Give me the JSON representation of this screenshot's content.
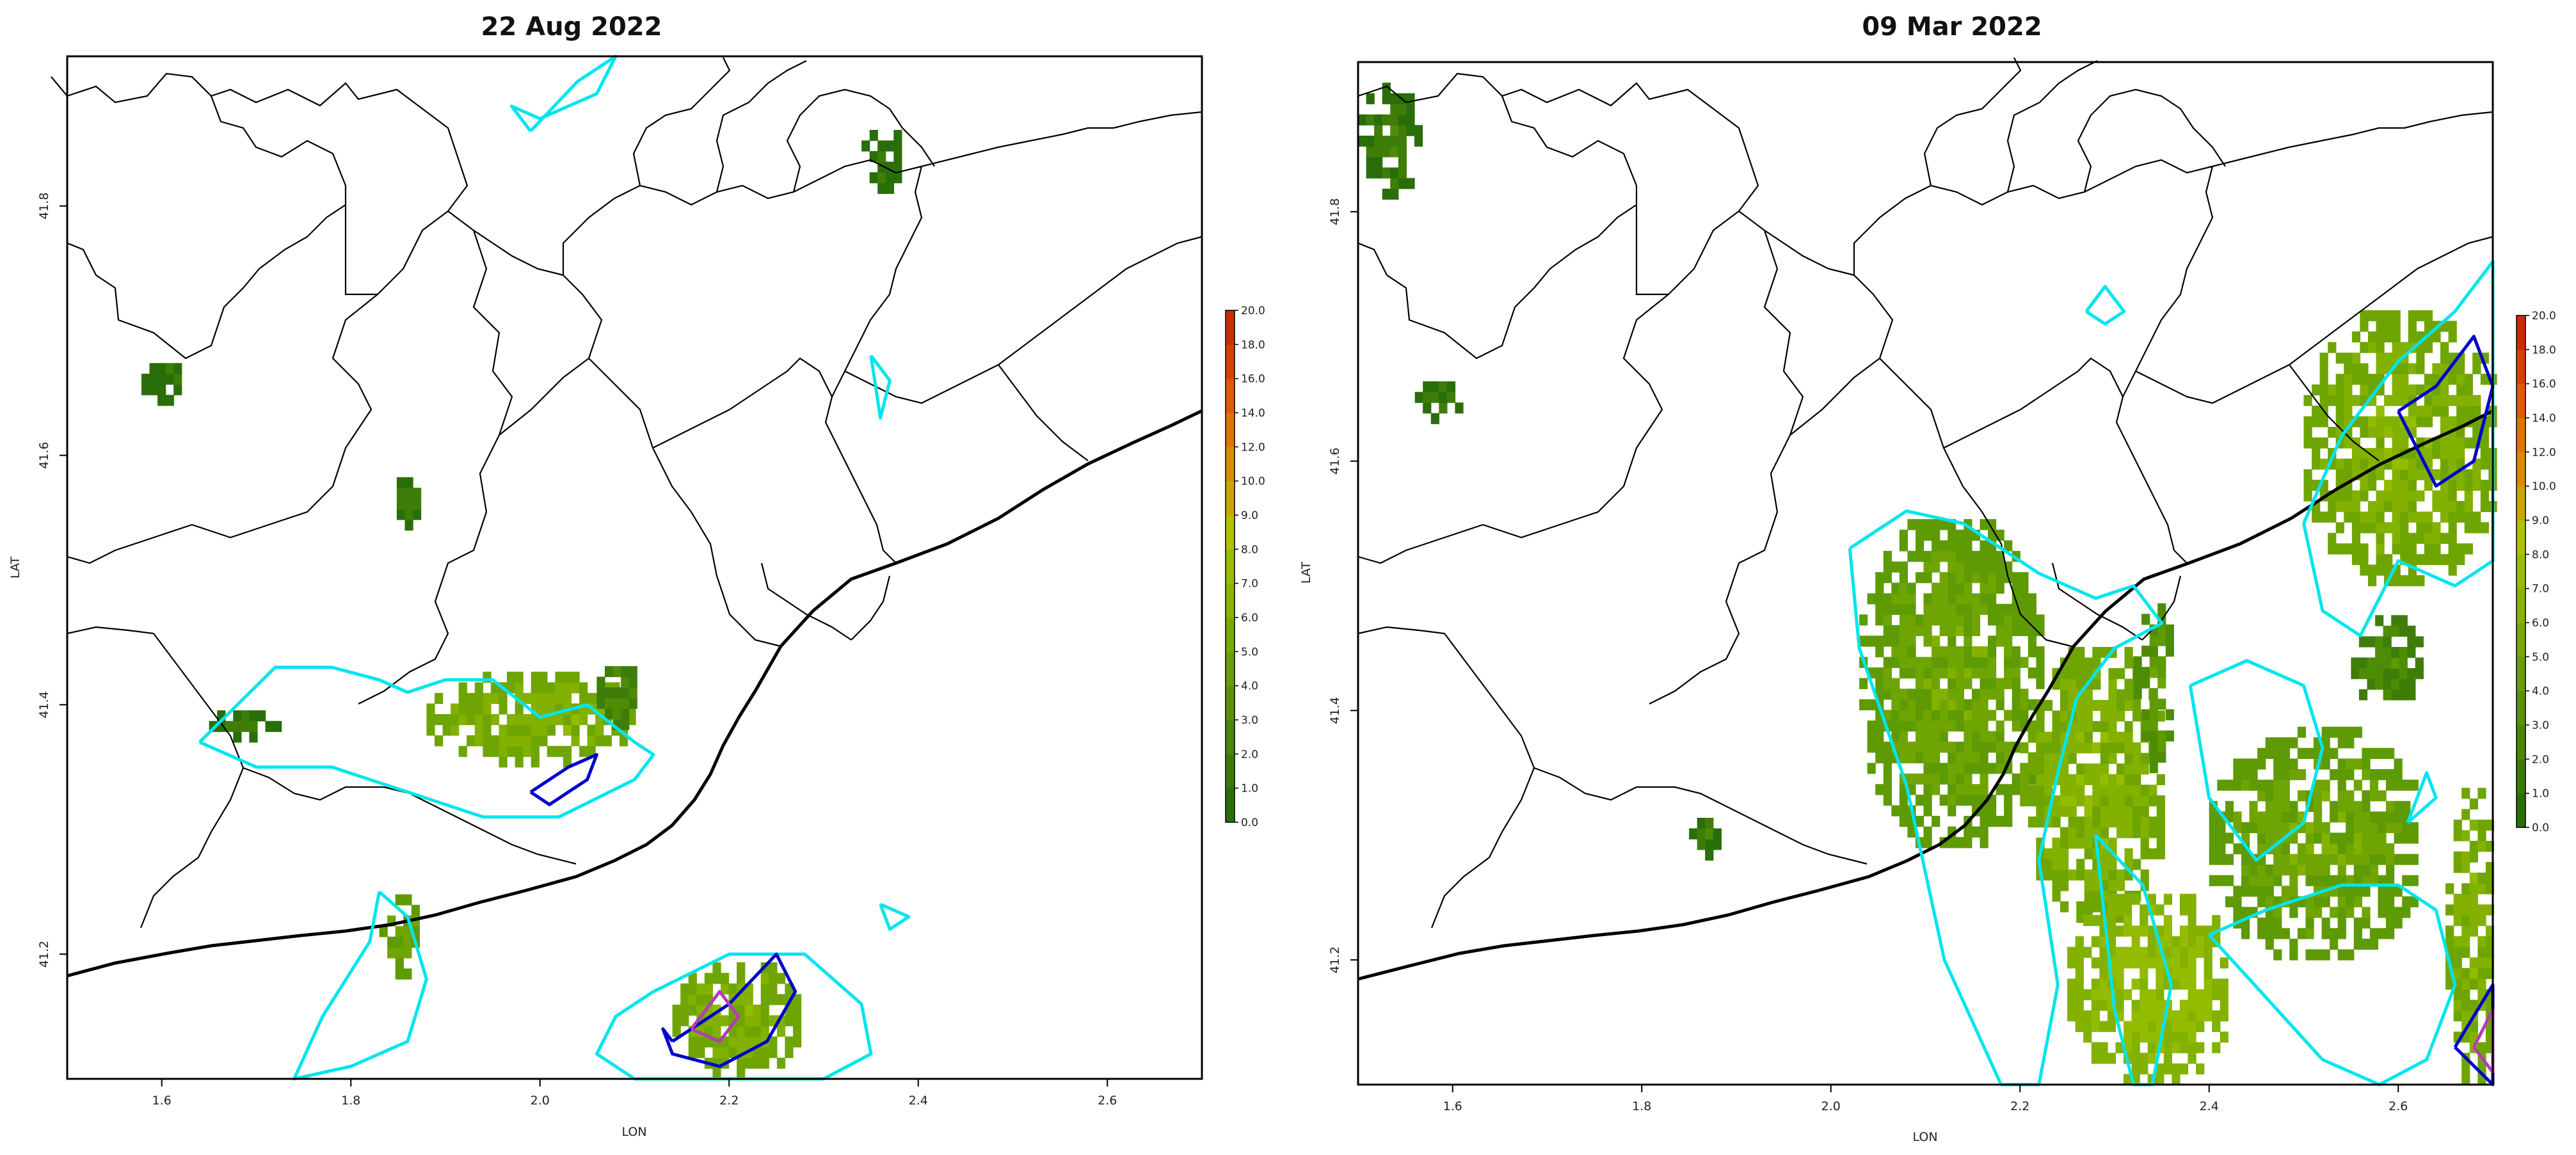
{
  "chart_data": [
    {
      "type": "map",
      "title": "22 Aug 2022",
      "xlabel": "LON",
      "ylabel": "LAT",
      "xlim": [
        1.5,
        2.7
      ],
      "ylim": [
        41.1,
        41.92
      ],
      "xticks": [
        "1.6",
        "1.8",
        "2.0",
        "2.2",
        "2.4",
        "2.6"
      ],
      "xtick_values": [
        1.6,
        1.8,
        2.0,
        2.2,
        2.4,
        2.6
      ],
      "yticks": [
        "41.2",
        "41.4",
        "41.6",
        "41.8"
      ],
      "ytick_values": [
        41.2,
        41.4,
        41.6,
        41.8
      ],
      "colorbar": {
        "labels": [
          "0.0",
          "1.0",
          "2.0",
          "3.0",
          "4.0",
          "5.0",
          "6.0",
          "7.0",
          "8.0",
          "9.0",
          "10.0",
          "12.0",
          "14.0",
          "16.0",
          "18.0",
          "20.0"
        ],
        "values": [
          0,
          1,
          2,
          3,
          4,
          5,
          6,
          7,
          8,
          9,
          10,
          12,
          14,
          16,
          18,
          20
        ]
      },
      "rain_cells": [
        {
          "lon": [
            1.57,
            1.62
          ],
          "lat": [
            41.64,
            41.67
          ],
          "level": 1
        },
        {
          "lon": [
            1.84,
            1.87
          ],
          "lat": [
            41.54,
            41.58
          ],
          "level": 1
        },
        {
          "lon": [
            1.65,
            1.72
          ],
          "lat": [
            41.37,
            41.39
          ],
          "level": 1
        },
        {
          "lon": [
            1.88,
            2.1
          ],
          "lat": [
            41.35,
            41.42
          ],
          "level": 5
        },
        {
          "lon": [
            2.06,
            2.1
          ],
          "lat": [
            41.38,
            41.43
          ],
          "level": 2
        },
        {
          "lon": [
            1.83,
            1.87
          ],
          "lat": [
            41.18,
            41.24
          ],
          "level": 4
        },
        {
          "lon": [
            2.14,
            2.27
          ],
          "lat": [
            41.1,
            41.19
          ],
          "level": 5
        },
        {
          "lon": [
            2.34,
            2.38
          ],
          "lat": [
            41.81,
            41.86
          ],
          "level": 1
        }
      ],
      "contours": [
        {
          "level": "cyan",
          "lon": [
            1.64,
            1.68,
            1.72,
            1.78,
            1.83,
            1.86,
            1.9,
            1.95,
            2.0,
            2.05,
            2.1,
            2.12,
            2.1,
            2.02,
            1.94,
            1.86,
            1.78,
            1.7,
            1.64
          ],
          "lat": [
            41.37,
            41.4,
            41.43,
            41.43,
            41.42,
            41.41,
            41.42,
            41.42,
            41.39,
            41.4,
            41.37,
            41.36,
            41.34,
            41.31,
            41.31,
            41.33,
            41.35,
            41.35,
            41.37
          ]
        },
        {
          "level": "cyan",
          "lon": [
            1.83,
            1.86,
            1.88,
            1.86,
            1.8,
            1.74,
            1.77,
            1.82,
            1.83
          ],
          "lat": [
            41.25,
            41.23,
            41.18,
            41.13,
            41.11,
            41.1,
            41.15,
            41.21,
            41.25
          ]
        },
        {
          "level": "cyan",
          "lon": [
            2.12,
            2.2,
            2.28,
            2.34,
            2.35,
            2.3,
            2.24,
            2.16,
            2.1,
            2.06,
            2.08,
            2.12
          ],
          "lat": [
            41.17,
            41.2,
            41.2,
            41.16,
            41.12,
            41.1,
            41.1,
            41.1,
            41.1,
            41.12,
            41.15,
            41.17
          ]
        },
        {
          "level": "cyan",
          "lon": [
            1.99,
            2.04,
            2.08,
            2.06,
            2.0,
            1.97,
            1.99
          ],
          "lat": [
            41.86,
            41.9,
            41.92,
            41.89,
            41.87,
            41.88,
            41.86
          ]
        },
        {
          "level": "cyan",
          "lon": [
            2.35,
            2.37,
            2.36,
            2.35
          ],
          "lat": [
            41.68,
            41.66,
            41.63,
            41.68
          ]
        },
        {
          "level": "cyan",
          "lon": [
            2.36,
            2.39,
            2.37,
            2.36
          ],
          "lat": [
            41.24,
            41.23,
            41.22,
            41.24
          ]
        },
        {
          "level": "blue",
          "lon": [
            1.99,
            2.03,
            2.06,
            2.05,
            2.01,
            1.99
          ],
          "lat": [
            41.33,
            41.35,
            41.36,
            41.34,
            41.32,
            41.33
          ]
        },
        {
          "level": "blue",
          "lon": [
            2.14,
            2.2,
            2.25,
            2.27,
            2.24,
            2.19,
            2.14,
            2.13,
            2.14
          ],
          "lat": [
            41.13,
            41.16,
            41.2,
            41.17,
            41.13,
            41.11,
            41.12,
            41.14,
            41.13
          ]
        },
        {
          "level": "magenta",
          "lon": [
            2.16,
            2.19,
            2.21,
            2.19,
            2.16
          ],
          "lat": [
            41.14,
            41.17,
            41.15,
            41.13,
            41.14
          ]
        }
      ]
    },
    {
      "type": "map",
      "title": "09 Mar 2022",
      "xlabel": "LON",
      "ylabel": "LAT",
      "xlim": [
        1.5,
        2.7
      ],
      "ylim": [
        41.1,
        41.92
      ],
      "xticks": [
        "1.6",
        "1.8",
        "2.0",
        "2.2",
        "2.4",
        "2.6"
      ],
      "xtick_values": [
        1.6,
        1.8,
        2.0,
        2.2,
        2.4,
        2.6
      ],
      "yticks": [
        "41.2",
        "41.4",
        "41.6",
        "41.8"
      ],
      "ytick_values": [
        41.2,
        41.4,
        41.6,
        41.8
      ],
      "colorbar": {
        "labels": [
          "0.0",
          "1.0",
          "2.0",
          "3.0",
          "4.0",
          "5.0",
          "6.0",
          "7.0",
          "8.0",
          "9.0",
          "10.0",
          "12.0",
          "14.0",
          "16.0",
          "18.0",
          "20.0"
        ],
        "values": [
          0,
          1,
          2,
          3,
          4,
          5,
          6,
          7,
          8,
          9,
          10,
          12,
          14,
          16,
          18,
          20
        ]
      },
      "rain_cells": [
        {
          "lon": [
            1.5,
            1.56
          ],
          "lat": [
            41.81,
            41.9
          ],
          "level": 1
        },
        {
          "lon": [
            1.56,
            1.61
          ],
          "lat": [
            41.63,
            41.66
          ],
          "level": 1
        },
        {
          "lon": [
            1.85,
            1.88
          ],
          "lat": [
            41.28,
            41.31
          ],
          "level": 1
        },
        {
          "lon": [
            2.03,
            2.22
          ],
          "lat": [
            41.29,
            41.55
          ],
          "level": 4
        },
        {
          "lon": [
            2.2,
            2.35
          ],
          "lat": [
            41.23,
            41.45
          ],
          "level": 5
        },
        {
          "lon": [
            2.25,
            2.42
          ],
          "lat": [
            41.1,
            41.25
          ],
          "level": 6
        },
        {
          "lon": [
            2.32,
            2.36
          ],
          "lat": [
            41.35,
            41.48
          ],
          "level": 3
        },
        {
          "lon": [
            2.4,
            2.62
          ],
          "lat": [
            41.2,
            41.38
          ],
          "level": 4
        },
        {
          "lon": [
            2.5,
            2.7
          ],
          "lat": [
            41.5,
            41.72
          ],
          "level": 5
        },
        {
          "lon": [
            2.55,
            2.62
          ],
          "lat": [
            41.4,
            41.47
          ],
          "level": 2
        },
        {
          "lon": [
            2.65,
            2.7
          ],
          "lat": [
            41.1,
            41.33
          ],
          "level": 5
        }
      ],
      "contours": [
        {
          "level": "cyan",
          "lon": [
            2.02,
            2.08,
            2.14,
            2.18,
            2.22,
            2.28,
            2.32,
            2.35,
            2.3,
            2.26,
            2.24,
            2.22,
            2.24,
            2.22,
            2.18,
            2.12,
            2.08,
            2.03,
            2.02
          ],
          "lat": [
            41.53,
            41.56,
            41.55,
            41.53,
            41.51,
            41.49,
            41.5,
            41.47,
            41.45,
            41.41,
            41.35,
            41.28,
            41.18,
            41.1,
            41.1,
            41.2,
            41.34,
            41.45,
            41.53
          ]
        },
        {
          "lon": [
            2.28,
            2.33,
            2.36,
            2.34,
            2.32,
            2.3,
            2.28
          ],
          "lat": [
            41.3,
            41.26,
            41.18,
            41.1,
            41.1,
            41.16,
            41.3
          ],
          "level": "cyan"
        },
        {
          "lon": [
            2.5,
            2.54,
            2.6,
            2.66,
            2.7,
            2.7,
            2.66,
            2.6,
            2.56,
            2.52,
            2.5
          ],
          "lat": [
            41.55,
            41.62,
            41.68,
            41.72,
            41.76,
            41.52,
            41.5,
            41.52,
            41.46,
            41.48,
            41.55
          ],
          "level": "cyan"
        },
        {
          "lon": [
            2.38,
            2.44,
            2.5,
            2.52,
            2.5,
            2.45,
            2.4,
            2.38
          ],
          "lat": [
            41.42,
            41.44,
            41.42,
            41.37,
            41.31,
            41.28,
            41.33,
            41.42
          ],
          "level": "cyan"
        },
        {
          "lon": [
            2.61,
            2.64,
            2.63,
            2.61
          ],
          "lat": [
            41.31,
            41.33,
            41.35,
            41.31
          ],
          "level": "cyan"
        },
        {
          "lon": [
            2.4,
            2.46,
            2.54,
            2.6,
            2.64,
            2.66,
            2.63,
            2.58,
            2.52,
            2.46,
            2.4
          ],
          "lat": [
            41.22,
            41.24,
            41.26,
            41.26,
            41.24,
            41.18,
            41.12,
            41.1,
            41.12,
            41.17,
            41.22
          ],
          "level": "cyan"
        },
        {
          "lon": [
            2.27,
            2.29,
            2.31,
            2.29,
            2.27
          ],
          "lat": [
            41.72,
            41.74,
            41.72,
            41.71,
            41.72
          ],
          "level": "cyan"
        },
        {
          "lon": [
            2.6,
            2.64,
            2.68,
            2.7,
            2.68,
            2.64,
            2.6
          ],
          "lat": [
            41.64,
            41.66,
            41.7,
            41.66,
            41.6,
            41.58,
            41.64
          ],
          "level": "blue"
        },
        {
          "lon": [
            2.66,
            2.7,
            2.7,
            2.66
          ],
          "lat": [
            41.13,
            41.18,
            41.1,
            41.13
          ],
          "level": "blue"
        },
        {
          "lon": [
            2.68,
            2.7,
            2.7,
            2.68
          ],
          "lat": [
            41.13,
            41.16,
            41.11,
            41.13
          ],
          "level": "magenta"
        }
      ]
    }
  ],
  "map_style": {
    "rain_palette": [
      "#2a6e0a",
      "#3e7e08",
      "#4f8c06",
      "#5e9a04",
      "#6fa502",
      "#82b100",
      "#93bc00"
    ],
    "contour_colors": {
      "cyan": "#00e5ee",
      "blue": "#0000cc",
      "magenta": "#b040b0"
    },
    "colorbar_colors": [
      "#ffffff",
      "#2a6e0a",
      "#3a7a08",
      "#4a8606",
      "#5a9204",
      "#6a9e02",
      "#7aaa00",
      "#8ab400",
      "#9abc00",
      "#b0c200",
      "#c8a800",
      "#d88e00",
      "#e07400",
      "#e05a00",
      "#d84000",
      "#cc2a00"
    ]
  }
}
